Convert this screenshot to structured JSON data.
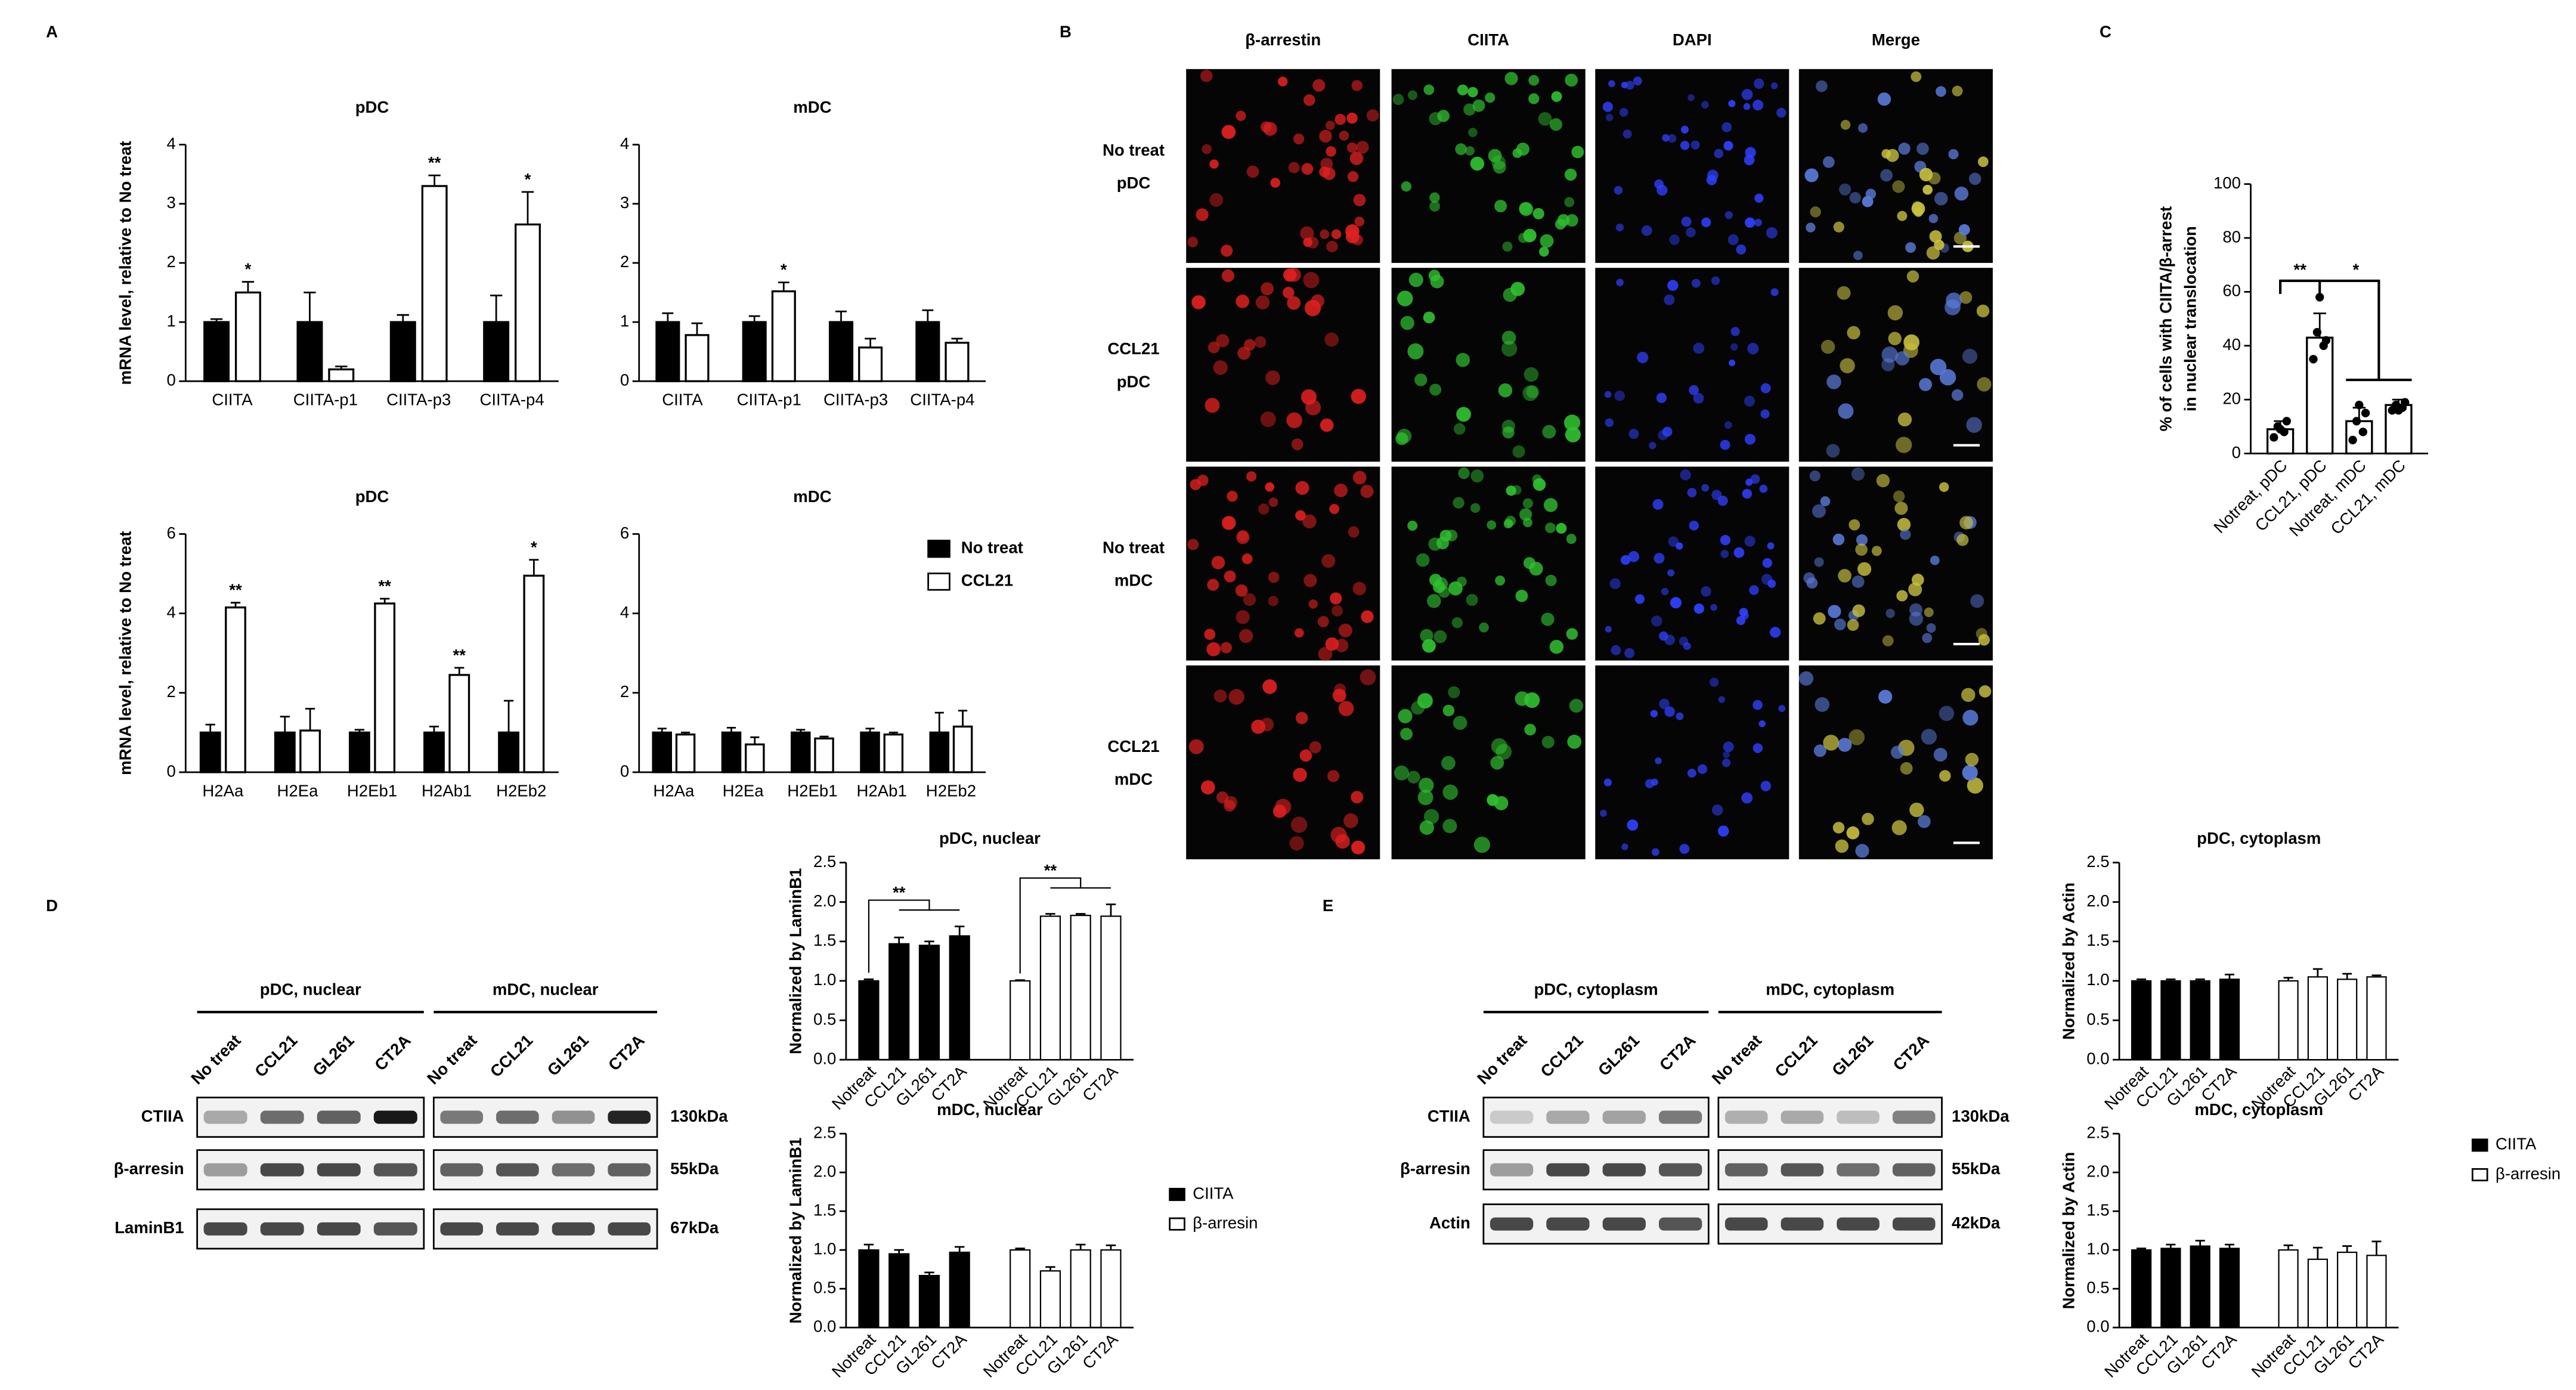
{
  "chart_data": [
    {
      "type": "bar",
      "title": "pDC",
      "ylabel": "mRNA level, relative to No treat",
      "categories": [
        "CIITA",
        "CIITA-p1",
        "CIITA-p3",
        "CIITA-p4"
      ],
      "group_by": "category",
      "ylim": [
        0,
        4
      ],
      "yticks": [
        0,
        1,
        2,
        3,
        4
      ],
      "series": [
        {
          "name": "No treat",
          "color": "#000000",
          "values": [
            1,
            1,
            1,
            1
          ],
          "errors": [
            0.05,
            0.5,
            0.12,
            0.45
          ]
        },
        {
          "name": "CCL21",
          "color": "#ffffff",
          "values": [
            1.5,
            0.2,
            3.3,
            2.65
          ],
          "errors": [
            0.18,
            0.05,
            0.18,
            0.55
          ]
        }
      ],
      "annotations": [
        {
          "text": "*",
          "series": "CCL21",
          "category": "CIITA"
        },
        {
          "text": "**",
          "series": "CCL21",
          "category": "CIITA-p3"
        },
        {
          "text": "*",
          "series": "CCL21",
          "category": "CIITA-p4"
        }
      ]
    },
    {
      "type": "bar",
      "title": "mDC",
      "categories": [
        "CIITA",
        "CIITA-p1",
        "CIITA-p3",
        "CIITA-p4"
      ],
      "group_by": "category",
      "ylim": [
        0,
        4
      ],
      "yticks": [
        0,
        1,
        2,
        3,
        4
      ],
      "series": [
        {
          "name": "No treat",
          "color": "#000000",
          "values": [
            1,
            1,
            1,
            1
          ],
          "errors": [
            0.15,
            0.1,
            0.18,
            0.2
          ]
        },
        {
          "name": "CCL21",
          "color": "#ffffff",
          "values": [
            0.78,
            1.52,
            0.57,
            0.65
          ],
          "errors": [
            0.2,
            0.15,
            0.15,
            0.07
          ]
        }
      ],
      "annotations": [
        {
          "text": "*",
          "series": "CCL21",
          "category": "CIITA-p1"
        }
      ]
    },
    {
      "type": "bar",
      "title": "pDC",
      "ylabel": "mRNA level, relative to No treat",
      "categories": [
        "H2Aa",
        "H2Ea",
        "H2Eb1",
        "H2Ab1",
        "H2Eb2"
      ],
      "group_by": "category",
      "ylim": [
        0,
        6
      ],
      "yticks": [
        0,
        2,
        4,
        6
      ],
      "legend": "right",
      "series": [
        {
          "name": "No treat",
          "color": "#000000",
          "values": [
            1,
            1,
            1,
            1,
            1
          ],
          "errors": [
            0.2,
            0.4,
            0.07,
            0.15,
            0.8
          ]
        },
        {
          "name": "CCL21",
          "color": "#ffffff",
          "values": [
            4.15,
            1.05,
            4.25,
            2.45,
            4.95
          ],
          "errors": [
            0.12,
            0.55,
            0.12,
            0.18,
            0.4
          ]
        }
      ],
      "annotations": [
        {
          "text": "**",
          "series": "CCL21",
          "category": "H2Aa"
        },
        {
          "text": "**",
          "series": "CCL21",
          "category": "H2Eb1"
        },
        {
          "text": "**",
          "series": "CCL21",
          "category": "H2Ab1"
        },
        {
          "text": "*",
          "series": "CCL21",
          "category": "H2Eb2"
        }
      ]
    },
    {
      "type": "bar",
      "title": "mDC",
      "categories": [
        "H2Aa",
        "H2Ea",
        "H2Eb1",
        "H2Ab1",
        "H2Eb2"
      ],
      "group_by": "category",
      "ylim": [
        0,
        6
      ],
      "yticks": [
        0,
        2,
        4,
        6
      ],
      "series": [
        {
          "name": "No treat",
          "color": "#000000",
          "values": [
            1,
            1,
            1,
            1,
            1
          ],
          "errors": [
            0.1,
            0.12,
            0.07,
            0.1,
            0.5
          ]
        },
        {
          "name": "CCL21",
          "color": "#ffffff",
          "values": [
            0.95,
            0.7,
            0.85,
            0.95,
            1.15
          ],
          "errors": [
            0.05,
            0.18,
            0.05,
            0.05,
            0.4
          ]
        }
      ]
    },
    {
      "type": "bar",
      "ylabel": [
        "% of cells with CIITA/β-arrest",
        "in nuclear translocation"
      ],
      "categories": [
        "Notreat, pDC",
        "CCL21, pDC",
        "Notreat, mDC",
        "CCL21, mDC"
      ],
      "group_by": "series",
      "ylim": [
        0,
        100
      ],
      "yticks": [
        0,
        20,
        40,
        60,
        80,
        100
      ],
      "series": [
        {
          "color": "#ffffff",
          "values": [
            9,
            43,
            12,
            18
          ],
          "errors": [
            3,
            9,
            5,
            2
          ],
          "points": [
            [
              6,
              8,
              10,
              12,
              9
            ],
            [
              35,
              40,
              45,
              42,
              58
            ],
            [
              5,
              8,
              12,
              15,
              18
            ],
            [
              16,
              17,
              18,
              19,
              16
            ]
          ]
        }
      ],
      "annotations": [
        {
          "text": "**",
          "categories": [
            "Notreat, pDC",
            "CCL21, pDC"
          ]
        },
        {
          "text": "*",
          "categories": [
            "Notreat, pDC",
            "CCL21, mDC"
          ]
        }
      ]
    },
    {
      "type": "bar",
      "title": "pDC, nuclear",
      "ylabel": "Normalized by LaminB1",
      "categories": [
        "Notreat",
        "CCL21",
        "GL261",
        "CT2A"
      ],
      "group_by": "series",
      "ylim": [
        0,
        2.5
      ],
      "yticks": [
        {
          "value": 0,
          "label": "0.0"
        },
        0.5,
        {
          "value": 1,
          "label": "1.0"
        },
        1.5,
        {
          "value": 2,
          "label": "2.0"
        },
        2.5
      ],
      "series": [
        {
          "name": "CIITA",
          "color": "#000000",
          "values": [
            1.0,
            1.47,
            1.45,
            1.57
          ],
          "errors": [
            0.02,
            0.08,
            0.05,
            0.12
          ]
        },
        {
          "name": "β-arresin",
          "color": "#ffffff",
          "values": [
            1.0,
            1.82,
            1.83,
            1.82
          ],
          "errors": [
            0.01,
            0.03,
            0.02,
            0.15
          ]
        }
      ],
      "annotations": [
        {
          "text": "**",
          "series": "CIITA"
        },
        {
          "text": "**",
          "series": "β-arresin"
        }
      ]
    },
    {
      "type": "bar",
      "title": "mDC, nuclear",
      "ylabel": "Normalized by LaminB1",
      "categories": [
        "Notreat",
        "CCL21",
        "GL261",
        "CT2A"
      ],
      "group_by": "series",
      "ylim": [
        0,
        2.5
      ],
      "yticks": [
        {
          "value": 0,
          "label": "0.0"
        },
        0.5,
        {
          "value": 1,
          "label": "1.0"
        },
        1.5,
        {
          "value": 2,
          "label": "2.0"
        },
        2.5
      ],
      "legend": "right",
      "series": [
        {
          "name": "CIITA",
          "color": "#000000",
          "values": [
            1.0,
            0.95,
            0.67,
            0.97
          ],
          "errors": [
            0.07,
            0.05,
            0.04,
            0.07
          ]
        },
        {
          "name": "β-arresin",
          "color": "#ffffff",
          "values": [
            1.0,
            0.73,
            1.0,
            1.0
          ],
          "errors": [
            0.02,
            0.05,
            0.07,
            0.06
          ]
        }
      ]
    },
    {
      "type": "bar",
      "title": "pDC, cytoplasm",
      "ylabel": "Normalized by Actin",
      "categories": [
        "Notreat",
        "CCL21",
        "GL261",
        "CT2A"
      ],
      "group_by": "series",
      "ylim": [
        0,
        2.5
      ],
      "yticks": [
        {
          "value": 0,
          "label": "0.0"
        },
        0.5,
        {
          "value": 1,
          "label": "1.0"
        },
        1.5,
        {
          "value": 2,
          "label": "2.0"
        },
        2.5
      ],
      "series": [
        {
          "name": "CIITA",
          "color": "#000000",
          "values": [
            1.0,
            1.0,
            1.0,
            1.02
          ],
          "errors": [
            0.02,
            0.02,
            0.02,
            0.06
          ]
        },
        {
          "name": "β-arresin",
          "color": "#ffffff",
          "values": [
            1.0,
            1.05,
            1.02,
            1.05
          ],
          "errors": [
            0.04,
            0.1,
            0.07,
            0.02
          ]
        }
      ]
    },
    {
      "type": "bar",
      "title": "mDC, cytoplasm",
      "ylabel": "Normalized by Actin",
      "categories": [
        "Notreat",
        "CCL21",
        "GL261",
        "CT2A"
      ],
      "group_by": "series",
      "ylim": [
        0,
        2.5
      ],
      "yticks": [
        {
          "value": 0,
          "label": "0.0"
        },
        0.5,
        {
          "value": 1,
          "label": "1.0"
        },
        1.5,
        {
          "value": 2,
          "label": "2.0"
        },
        2.5
      ],
      "legend": "right",
      "series": [
        {
          "name": "CIITA",
          "color": "#000000",
          "values": [
            1.0,
            1.02,
            1.05,
            1.02
          ],
          "errors": [
            0.02,
            0.05,
            0.07,
            0.05
          ]
        },
        {
          "name": "β-arresin",
          "color": "#ffffff",
          "values": [
            1.0,
            0.88,
            0.97,
            0.93
          ],
          "errors": [
            0.06,
            0.15,
            0.08,
            0.18
          ]
        }
      ]
    }
  ],
  "figure": {
    "panels": [
      "A",
      "B",
      "C",
      "D",
      "E"
    ],
    "microscopy": {
      "columns": [
        "β-arrestin",
        "CIITA",
        "DAPI",
        "Merge"
      ],
      "rows": [
        [
          "No treat",
          "pDC"
        ],
        [
          "CCL21",
          "pDC"
        ],
        [
          "No treat",
          "mDC"
        ],
        [
          "CCL21",
          "mDC"
        ]
      ]
    },
    "blots": [
      {
        "groups": [
          "pDC, nuclear",
          "mDC, nuclear"
        ],
        "lanes": [
          "No treat",
          "CCL21",
          "GL261",
          "CT2A"
        ],
        "rows": [
          {
            "protein": "CTIIA",
            "size": "130kDa"
          },
          {
            "protein": "β-arresin",
            "size": "55kDa"
          },
          {
            "protein": "LaminB1",
            "size": "67kDa"
          }
        ]
      },
      {
        "groups": [
          "pDC, cytoplasm",
          "mDC, cytoplasm"
        ],
        "lanes": [
          "No treat",
          "CCL21",
          "GL261",
          "CT2A"
        ],
        "rows": [
          {
            "protein": "CTIIA",
            "size": "130kDa"
          },
          {
            "protein": "β-arresin",
            "size": "55kDa"
          },
          {
            "protein": "Actin",
            "size": "42kDa"
          }
        ]
      }
    ]
  }
}
